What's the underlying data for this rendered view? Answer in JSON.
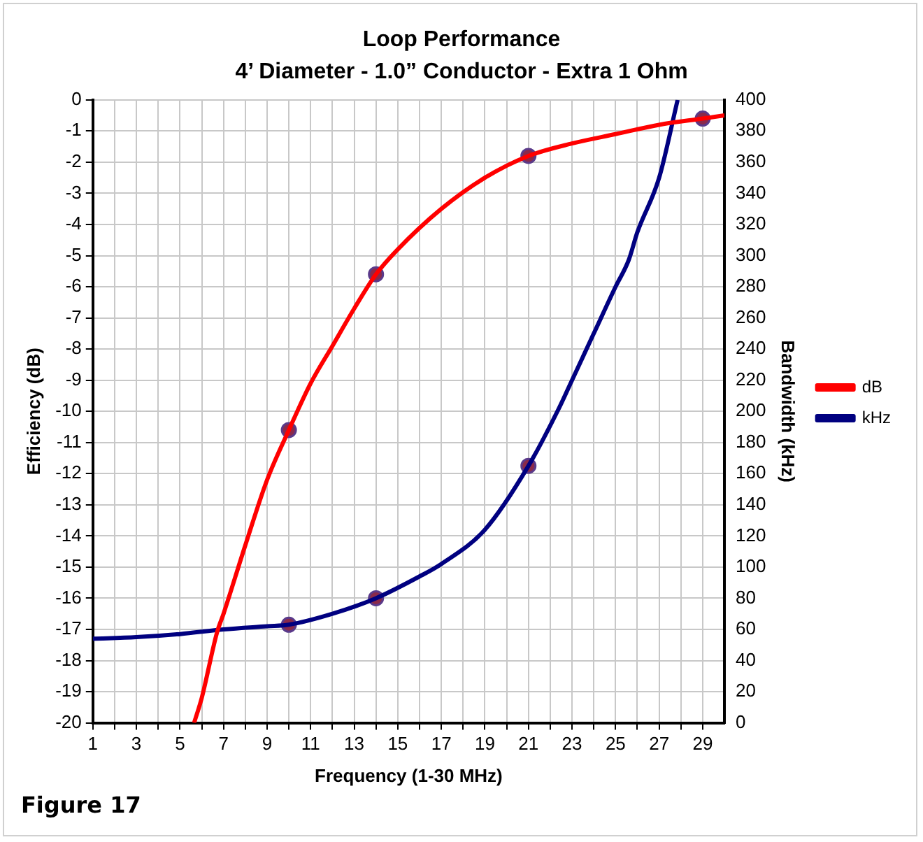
{
  "chart_data": {
    "type": "line",
    "title": "Loop Performance",
    "subtitle": "4’ Diameter - 1.0” Conductor - Extra 1 Ohm",
    "xlabel": "Frequency (1-30 MHz)",
    "ylabel": "Efficiency (dB)",
    "y2label": "Bandwidth (kHz)",
    "annotations": [
      "Figure 17"
    ],
    "xlim": [
      1,
      30
    ],
    "xticks": [
      1,
      {
        "value": 2,
        "label": null
      },
      3,
      {
        "value": 4,
        "label": null
      },
      5,
      {
        "value": 6,
        "label": null
      },
      7,
      {
        "value": 8,
        "label": null
      },
      9,
      {
        "value": 10,
        "label": null
      },
      11,
      {
        "value": 12,
        "label": null
      },
      13,
      {
        "value": 14,
        "label": null
      },
      15,
      {
        "value": 16,
        "label": null
      },
      17,
      {
        "value": 18,
        "label": null
      },
      19,
      {
        "value": 20,
        "label": null
      },
      21,
      {
        "value": 22,
        "label": null
      },
      23,
      {
        "value": 24,
        "label": null
      },
      25,
      {
        "value": 26,
        "label": null
      },
      27,
      {
        "value": 28,
        "label": null
      },
      29
    ],
    "ylim": [
      -20,
      0
    ],
    "yticks": [
      -20,
      -19,
      -18,
      -17,
      -16,
      -15,
      -14,
      -13,
      -12,
      -11,
      -10,
      -9,
      -8,
      -7,
      -6,
      -5,
      -4,
      -3,
      -2,
      -1,
      0
    ],
    "y2lim": [
      0,
      400
    ],
    "y2ticks": [
      0,
      20,
      40,
      60,
      80,
      100,
      120,
      140,
      160,
      180,
      200,
      220,
      240,
      260,
      280,
      300,
      320,
      340,
      360,
      380,
      400
    ],
    "grid": true,
    "legend": "right",
    "series": [
      {
        "name": "dB",
        "marker": "none",
        "color": "#ff0000",
        "x": [
          5.65,
          6,
          6.7,
          7,
          8,
          9,
          10,
          11,
          12,
          13,
          14,
          15,
          17,
          19,
          21,
          23,
          25,
          27,
          29,
          30
        ],
        "values": [
          -20,
          -19.2,
          -17.1,
          -16.5,
          -14.3,
          -12.2,
          -10.6,
          -9.1,
          -7.9,
          -6.7,
          -5.6,
          -4.8,
          -3.5,
          -2.5,
          -1.8,
          -1.4,
          -1.1,
          -0.8,
          -0.6,
          -0.5
        ]
      },
      {
        "name": "kHz",
        "marker": "none",
        "axis": "y2",
        "color": "#000080",
        "x": [
          1,
          3,
          5,
          7,
          9,
          10,
          12,
          14,
          16,
          17,
          19,
          21,
          22.4,
          23,
          24,
          25,
          25.6,
          26,
          27,
          27.85
        ],
        "values": [
          54,
          55,
          57,
          60,
          62,
          63,
          70,
          80,
          94,
          102,
          124,
          165,
          202,
          220,
          250,
          280,
          297,
          315,
          350,
          400
        ]
      },
      {
        "type": "scatter",
        "marker": "circle",
        "color": "#8b2a4a",
        "x": [
          10,
          14,
          21,
          29
        ],
        "values": [
          -10.6,
          -5.6,
          -1.8,
          -0.6
        ]
      },
      {
        "type": "scatter",
        "marker": "circle",
        "axis": "y2",
        "color": "#8b2a4a",
        "x": [
          10,
          14,
          21
        ],
        "values": [
          63,
          80,
          165
        ]
      }
    ]
  }
}
